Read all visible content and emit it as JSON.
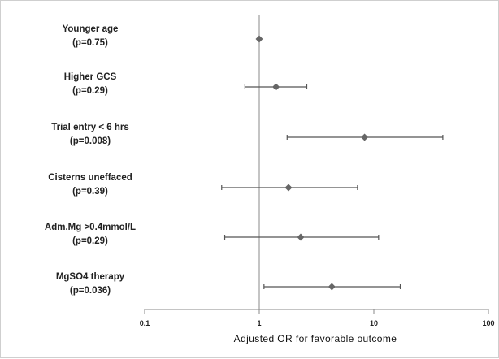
{
  "chart_data": {
    "type": "forest",
    "xlabel": "Adjusted OR for favorable outcome",
    "xscale": "log",
    "xlim": [
      0.1,
      100
    ],
    "ticks": [
      {
        "value": 0.1,
        "label": "0.1"
      },
      {
        "value": 1,
        "label": "1"
      },
      {
        "value": 10,
        "label": "10"
      },
      {
        "value": 100,
        "label": "100"
      }
    ],
    "reference_line": 1,
    "grid": false,
    "rows": [
      {
        "label": "Younger age",
        "p": "(p=0.75)",
        "or": 1.0,
        "lo": 1.0,
        "hi": 1.0
      },
      {
        "label": "Higher GCS",
        "p": "(p=0.29)",
        "or": 1.4,
        "lo": 0.75,
        "hi": 2.6
      },
      {
        "label": "Trial entry < 6 hrs",
        "p": "(p=0.008)",
        "or": 8.3,
        "lo": 1.75,
        "hi": 40
      },
      {
        "label": "Cisterns uneffaced",
        "p": "(p=0.39)",
        "or": 1.8,
        "lo": 0.47,
        "hi": 7.2
      },
      {
        "label": "Adm.Mg >0.4mmol/L",
        "p": "(p=0.29)",
        "or": 2.3,
        "lo": 0.5,
        "hi": 11
      },
      {
        "label": "MgSO4 therapy",
        "p": "(p=0.036)",
        "or": 4.3,
        "lo": 1.1,
        "hi": 17
      }
    ],
    "colors": {
      "marker": "#666666",
      "line": "#555555",
      "axis": "#888888"
    }
  }
}
